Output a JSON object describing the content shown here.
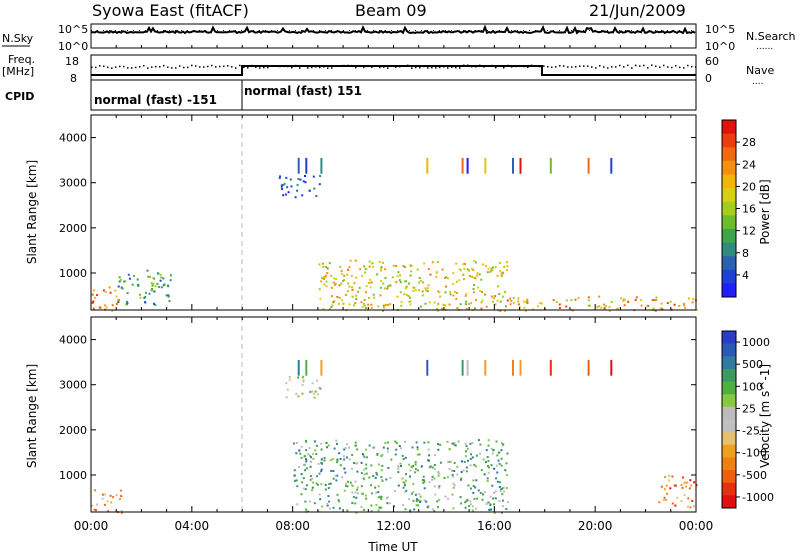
{
  "header": {
    "station": "Syowa East (fitACF)",
    "beam": "Beam 09",
    "date": "21/Jun/2009"
  },
  "nsky_panel": {
    "left_label": "N.Sky",
    "right_label": "N.Search",
    "right_legend_line": "......",
    "tick_top_left": "10^5",
    "tick_bottom_left": "10^0",
    "tick_top_right": "10^5",
    "tick_bottom_right": "10^0"
  },
  "freq_panel": {
    "left_label_line1": "Freq.",
    "left_label_line2": "[MHz]",
    "right_label": "Nave",
    "right_legend_line": "....",
    "tick_top_left": "18",
    "tick_bottom_left": "8",
    "tick_top_right": "60",
    "tick_bottom_right": "0"
  },
  "cpid_panel": {
    "label": "CPID",
    "modes": [
      {
        "label": "normal (fast) -151",
        "start_hour": 0,
        "end_hour": 6
      },
      {
        "label": "normal (fast) 151",
        "start_hour": 6,
        "end_hour": 24
      }
    ]
  },
  "chart_data": [
    {
      "type": "heatmap",
      "name": "power",
      "ylabel": "Slant Range [km]",
      "xlabel": "",
      "ylim": [
        180,
        4500
      ],
      "yticks": [
        1000,
        2000,
        3000,
        4000
      ],
      "colorbar": {
        "label": "Power [dB]",
        "range": [
          0,
          32
        ],
        "ticks": [
          "4",
          "8",
          "12",
          "16",
          "20",
          "24",
          "28"
        ],
        "colors": [
          "#1f1fff",
          "#1f40d8",
          "#2a62b0",
          "#2f8b7e",
          "#3ea64a",
          "#6dbd2a",
          "#a3cf1c",
          "#d8d014",
          "#f3b40c",
          "#f49010",
          "#f26a10",
          "#ec3c10",
          "#e31010"
        ]
      },
      "features": [
        {
          "t0": 0.0,
          "t1": 1.1,
          "r0": 180,
          "r1": 800,
          "level": 0.8
        },
        {
          "t0": 1.0,
          "t1": 3.2,
          "r0": 300,
          "r1": 1000,
          "level": 0.3
        },
        {
          "t0": 2.2,
          "t1": 2.9,
          "r0": 700,
          "r1": 1100,
          "level": 0.35
        },
        {
          "t0": 7.4,
          "t1": 9.1,
          "r0": 2700,
          "r1": 3200,
          "level": 0.1
        },
        {
          "t0": 9.0,
          "t1": 16.5,
          "r0": 180,
          "r1": 1300,
          "level": 0.6
        },
        {
          "t0": 16.0,
          "t1": 24.0,
          "r0": 180,
          "r1": 500,
          "level": 0.7
        }
      ]
    },
    {
      "type": "heatmap",
      "name": "velocity",
      "ylabel": "Slant Range [km]",
      "xlabel": "Time UT",
      "ylim": [
        180,
        4500
      ],
      "yticks": [
        1000,
        2000,
        3000,
        4000
      ],
      "xticks": [
        "00:00",
        "04:00",
        "08:00",
        "12:00",
        "16:00",
        "20:00",
        "00:00"
      ],
      "xlim_hours": [
        0,
        24
      ],
      "colorbar": {
        "label": "Velocity [m s^-1]",
        "ticks": [
          "1000",
          "500",
          "100",
          "25",
          "-25",
          "-100",
          "-500",
          "-1000"
        ],
        "colors": [
          "#2a3cc8",
          "#2a5ab8",
          "#2f7aa0",
          "#3f9a60",
          "#4fb040",
          "#86c840",
          "#bcbcbc",
          "#c0c0c0",
          "#e7c070",
          "#f0a020",
          "#f08010",
          "#ee6010",
          "#e83010",
          "#e01010"
        ]
      },
      "features": [
        {
          "t0": 0.0,
          "t1": 1.2,
          "r0": 180,
          "r1": 700,
          "level": 0.7
        },
        {
          "t0": 7.6,
          "t1": 9.1,
          "r0": 2700,
          "r1": 3200,
          "level": 0.45
        },
        {
          "t0": 8.0,
          "t1": 16.5,
          "r0": 180,
          "r1": 1800,
          "level": 0.3
        },
        {
          "t0": 22.5,
          "t1": 24.0,
          "r0": 300,
          "r1": 1000,
          "level": 0.8
        }
      ]
    }
  ]
}
